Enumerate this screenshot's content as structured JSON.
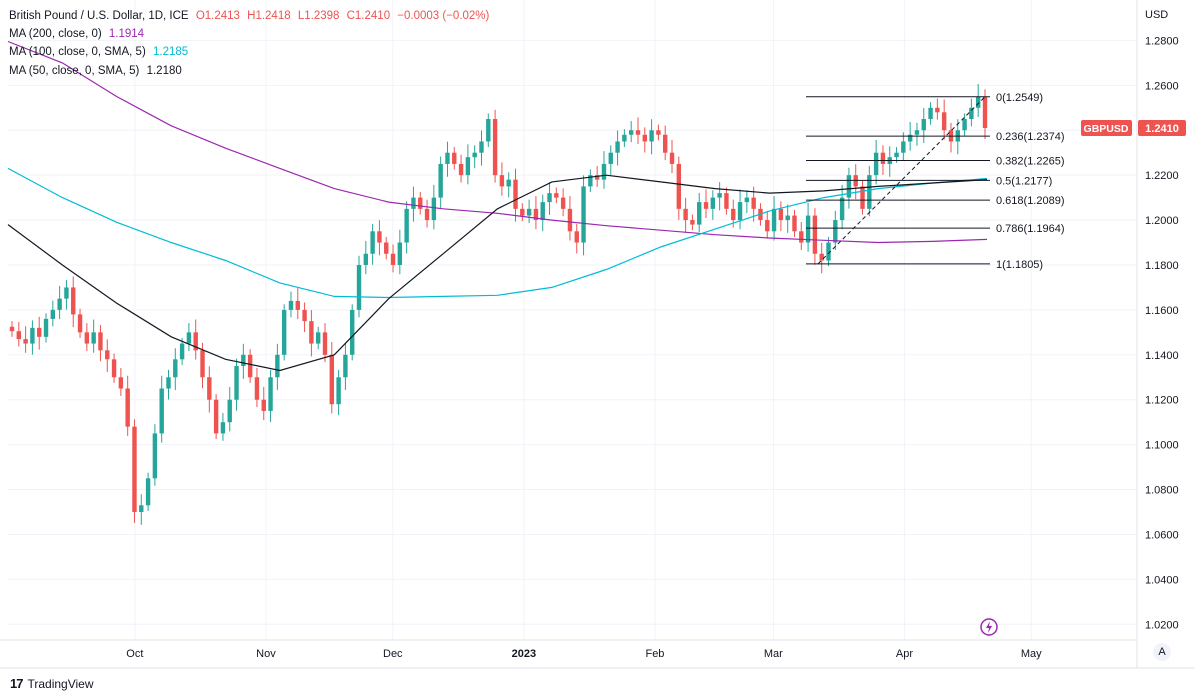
{
  "legend": {
    "title": "British Pound / U.S. Dollar, 1D, ICE",
    "ohlc": {
      "O": "O1.2413",
      "H": "H1.2418",
      "L": "L1.2398",
      "C": "C1.2410",
      "chg": "−0.0003 (−0.02%)"
    },
    "ma200": {
      "label": "MA (200, close, 0)",
      "value": "1.1914",
      "color": "#9c27b0"
    },
    "ma100": {
      "label": "MA (100, close, 0, SMA, 5)",
      "value": "1.2185",
      "color": "#00bcd4"
    },
    "ma50": {
      "label": "MA (50, close, 0, SMA, 5)",
      "value": "1.2180",
      "color": "#131722"
    }
  },
  "currency": "USD",
  "price_tag": {
    "symbol": "GBPUSD",
    "value": "1.2410",
    "color": "#ef5350"
  },
  "footer": {
    "logo": "17",
    "brand": "TradingView"
  },
  "axis_button": "A",
  "chart_data": {
    "type": "candlestick",
    "ylim": [
      1.013,
      1.298
    ],
    "yticks": [
      "1.0200",
      "1.0400",
      "1.0600",
      "1.0800",
      "1.1000",
      "1.1200",
      "1.1400",
      "1.1600",
      "1.1800",
      "1.2000",
      "1.2200",
      "1.2400",
      "1.2600",
      "1.2800"
    ],
    "xticks": [
      {
        "label": "Oct",
        "x": "2022-10-01"
      },
      {
        "label": "Nov",
        "x": "2022-11-01"
      },
      {
        "label": "Dec",
        "x": "2022-12-01"
      },
      {
        "label": "2023",
        "x": "2023-01-01"
      },
      {
        "label": "Feb",
        "x": "2023-02-01"
      },
      {
        "label": "Mar",
        "x": "2023-03-01"
      },
      {
        "label": "Apr",
        "x": "2023-04-01"
      },
      {
        "label": "May",
        "x": "2023-05-01"
      }
    ],
    "colors": {
      "up": "#26a69a",
      "down": "#ef5350"
    },
    "candle_closes": [
      1.1505,
      1.147,
      1.145,
      1.152,
      1.148,
      1.156,
      1.16,
      1.165,
      1.17,
      1.158,
      1.15,
      1.145,
      1.15,
      1.142,
      1.138,
      1.13,
      1.125,
      1.108,
      1.07,
      1.073,
      1.085,
      1.105,
      1.125,
      1.13,
      1.138,
      1.145,
      1.15,
      1.142,
      1.13,
      1.12,
      1.105,
      1.11,
      1.12,
      1.135,
      1.14,
      1.13,
      1.12,
      1.115,
      1.13,
      1.14,
      1.16,
      1.164,
      1.16,
      1.155,
      1.145,
      1.15,
      1.14,
      1.118,
      1.13,
      1.14,
      1.16,
      1.18,
      1.185,
      1.195,
      1.19,
      1.185,
      1.18,
      1.19,
      1.205,
      1.21,
      1.205,
      1.2,
      1.21,
      1.225,
      1.23,
      1.225,
      1.22,
      1.228,
      1.23,
      1.235,
      1.245,
      1.22,
      1.215,
      1.218,
      1.205,
      1.202,
      1.205,
      1.2,
      1.208,
      1.212,
      1.21,
      1.205,
      1.195,
      1.19,
      1.215,
      1.22,
      1.218,
      1.225,
      1.23,
      1.235,
      1.238,
      1.24,
      1.238,
      1.235,
      1.24,
      1.238,
      1.23,
      1.225,
      1.205,
      1.2,
      1.198,
      1.208,
      1.205,
      1.21,
      1.212,
      1.205,
      1.2,
      1.208,
      1.21,
      1.205,
      1.2,
      1.195,
      1.205,
      1.2,
      1.202,
      1.195,
      1.19,
      1.202,
      1.185,
      1.182,
      1.19,
      1.2,
      1.21,
      1.22,
      1.215,
      1.205,
      1.22,
      1.23,
      1.225,
      1.228,
      1.23,
      1.235,
      1.238,
      1.24,
      1.245,
      1.25,
      1.248,
      1.24,
      1.235,
      1.24,
      1.245,
      1.25,
      1.2549,
      1.241
    ],
    "ma200_points": [
      [
        0,
        1.2795
      ],
      [
        40,
        1.27
      ],
      [
        80,
        1.255
      ],
      [
        120,
        1.242
      ],
      [
        160,
        1.232
      ],
      [
        200,
        1.223
      ],
      [
        240,
        1.214
      ],
      [
        280,
        1.208
      ],
      [
        320,
        1.205
      ],
      [
        360,
        1.203
      ],
      [
        400,
        1.2
      ],
      [
        440,
        1.1975
      ],
      [
        480,
        1.1955
      ],
      [
        520,
        1.1935
      ],
      [
        560,
        1.192
      ],
      [
        600,
        1.191
      ],
      [
        640,
        1.19
      ],
      [
        680,
        1.1905
      ],
      [
        720,
        1.1914
      ]
    ],
    "ma100_points": [
      [
        0,
        1.223
      ],
      [
        40,
        1.21
      ],
      [
        80,
        1.199
      ],
      [
        120,
        1.19
      ],
      [
        160,
        1.182
      ],
      [
        200,
        1.172
      ],
      [
        240,
        1.166
      ],
      [
        280,
        1.1655
      ],
      [
        320,
        1.166
      ],
      [
        360,
        1.1665
      ],
      [
        400,
        1.17
      ],
      [
        440,
        1.178
      ],
      [
        480,
        1.188
      ],
      [
        520,
        1.196
      ],
      [
        560,
        1.204
      ],
      [
        600,
        1.21
      ],
      [
        640,
        1.214
      ],
      [
        680,
        1.2165
      ],
      [
        720,
        1.2185
      ]
    ],
    "ma50_points": [
      [
        0,
        1.198
      ],
      [
        40,
        1.18
      ],
      [
        80,
        1.163
      ],
      [
        120,
        1.148
      ],
      [
        160,
        1.138
      ],
      [
        200,
        1.133
      ],
      [
        240,
        1.14
      ],
      [
        280,
        1.165
      ],
      [
        320,
        1.185
      ],
      [
        360,
        1.205
      ],
      [
        400,
        1.217
      ],
      [
        440,
        1.22
      ],
      [
        480,
        1.217
      ],
      [
        520,
        1.214
      ],
      [
        560,
        1.212
      ],
      [
        600,
        1.213
      ],
      [
        640,
        1.215
      ],
      [
        680,
        1.2165
      ],
      [
        720,
        1.218
      ]
    ],
    "fib_levels": [
      {
        "ratio": "0",
        "value": 1.2549,
        "label": "0(1.2549)"
      },
      {
        "ratio": "0.236",
        "value": 1.2374,
        "label": "0.236(1.2374)"
      },
      {
        "ratio": "0.382",
        "value": 1.2265,
        "label": "0.382(1.2265)"
      },
      {
        "ratio": "0.5",
        "value": 1.2177,
        "label": "0.5(1.2177)"
      },
      {
        "ratio": "0.618",
        "value": 1.2089,
        "label": "0.618(1.2089)"
      },
      {
        "ratio": "0.786",
        "value": 1.1964,
        "label": "0.786(1.1964)"
      },
      {
        "ratio": "1",
        "value": 1.1805,
        "label": "1(1.1805)"
      }
    ]
  }
}
